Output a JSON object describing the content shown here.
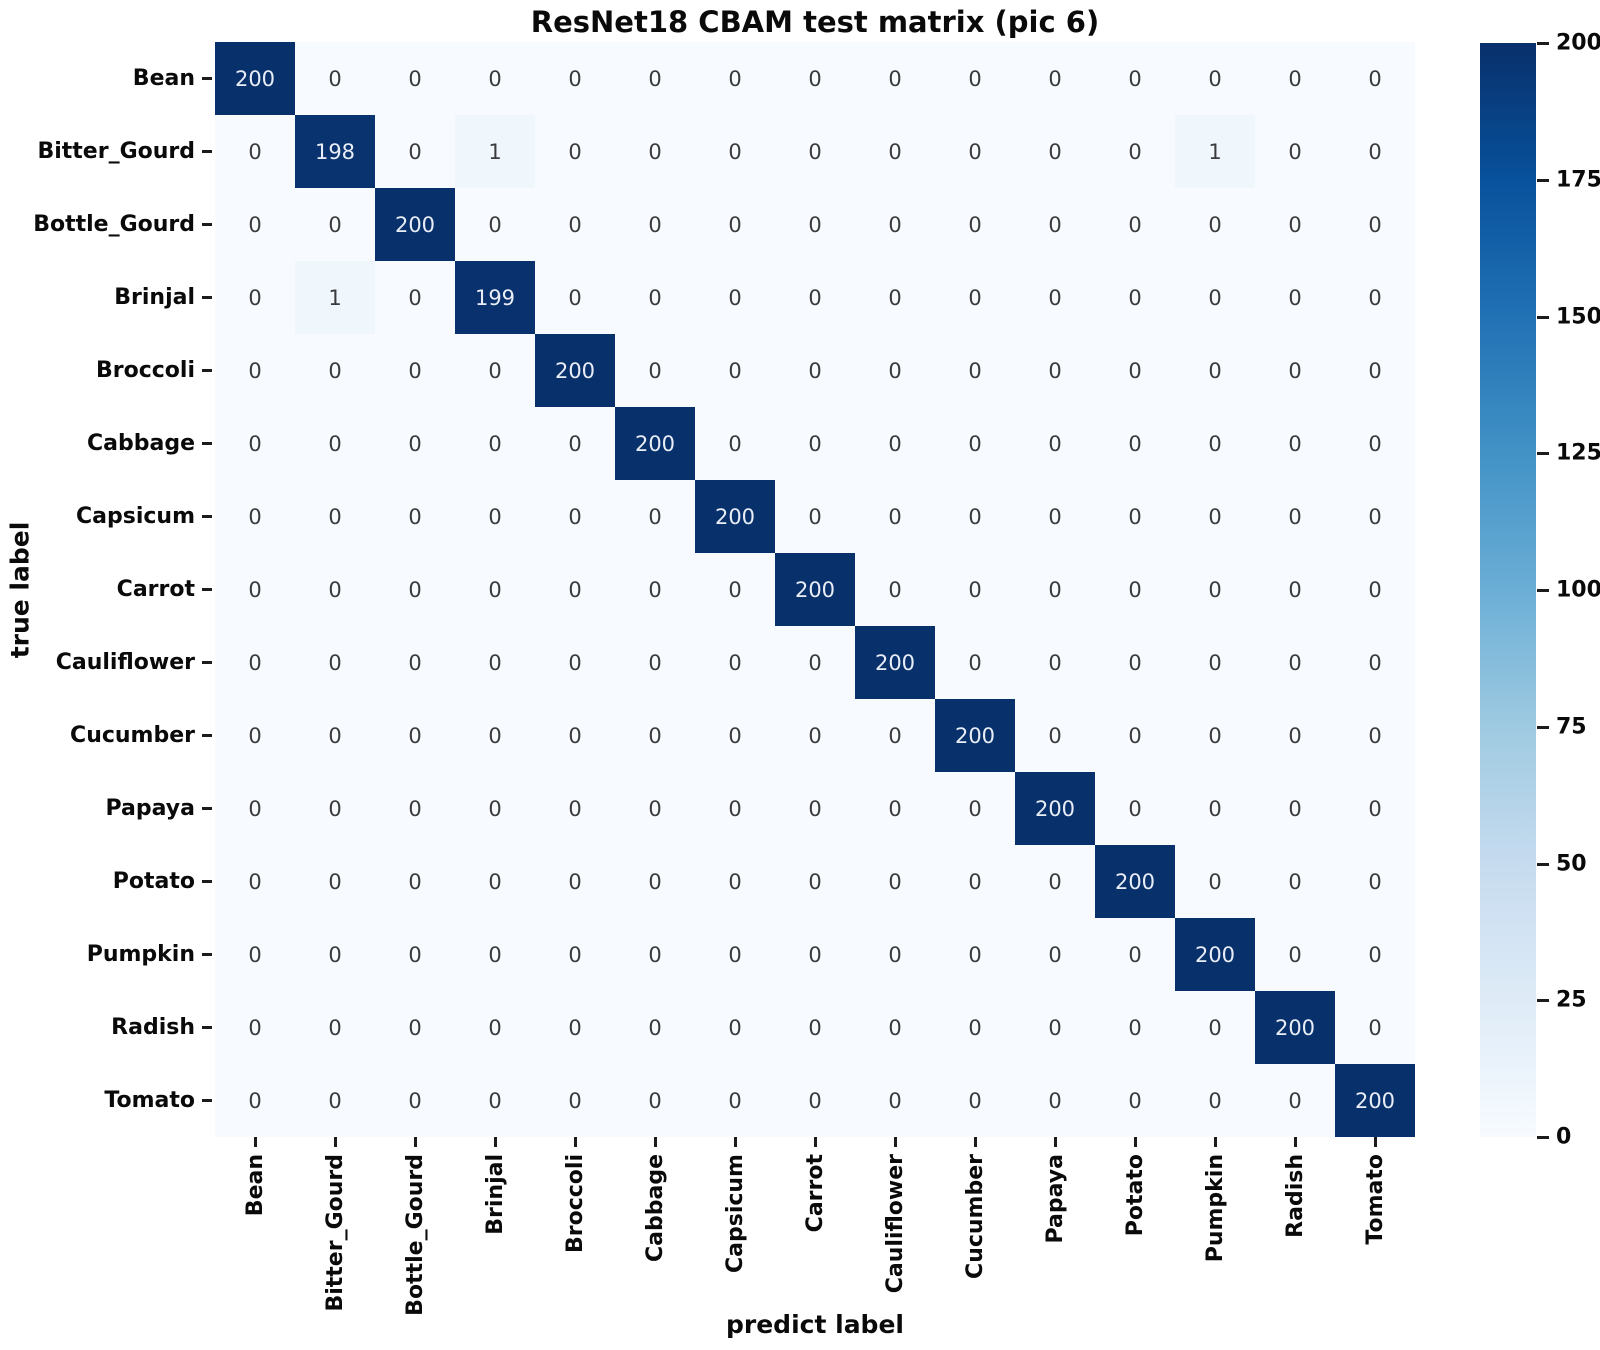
{
  "chart_data": {
    "type": "heatmap",
    "title": "ResNet18 CBAM test matrix (pic 6)",
    "xlabel": "predict label",
    "ylabel": "true label",
    "categories": [
      "Bean",
      "Bitter_Gourd",
      "Bottle_Gourd",
      "Brinjal",
      "Broccoli",
      "Cabbage",
      "Capsicum",
      "Carrot",
      "Cauliflower",
      "Cucumber",
      "Papaya",
      "Potato",
      "Pumpkin",
      "Radish",
      "Tomato"
    ],
    "matrix": [
      [
        200,
        0,
        0,
        0,
        0,
        0,
        0,
        0,
        0,
        0,
        0,
        0,
        0,
        0,
        0
      ],
      [
        0,
        198,
        0,
        1,
        0,
        0,
        0,
        0,
        0,
        0,
        0,
        0,
        1,
        0,
        0
      ],
      [
        0,
        0,
        200,
        0,
        0,
        0,
        0,
        0,
        0,
        0,
        0,
        0,
        0,
        0,
        0
      ],
      [
        0,
        1,
        0,
        199,
        0,
        0,
        0,
        0,
        0,
        0,
        0,
        0,
        0,
        0,
        0
      ],
      [
        0,
        0,
        0,
        0,
        200,
        0,
        0,
        0,
        0,
        0,
        0,
        0,
        0,
        0,
        0
      ],
      [
        0,
        0,
        0,
        0,
        0,
        200,
        0,
        0,
        0,
        0,
        0,
        0,
        0,
        0,
        0
      ],
      [
        0,
        0,
        0,
        0,
        0,
        0,
        200,
        0,
        0,
        0,
        0,
        0,
        0,
        0,
        0
      ],
      [
        0,
        0,
        0,
        0,
        0,
        0,
        0,
        200,
        0,
        0,
        0,
        0,
        0,
        0,
        0
      ],
      [
        0,
        0,
        0,
        0,
        0,
        0,
        0,
        0,
        200,
        0,
        0,
        0,
        0,
        0,
        0
      ],
      [
        0,
        0,
        0,
        0,
        0,
        0,
        0,
        0,
        0,
        200,
        0,
        0,
        0,
        0,
        0
      ],
      [
        0,
        0,
        0,
        0,
        0,
        0,
        0,
        0,
        0,
        0,
        200,
        0,
        0,
        0,
        0
      ],
      [
        0,
        0,
        0,
        0,
        0,
        0,
        0,
        0,
        0,
        0,
        0,
        200,
        0,
        0,
        0
      ],
      [
        0,
        0,
        0,
        0,
        0,
        0,
        0,
        0,
        0,
        0,
        0,
        0,
        200,
        0,
        0
      ],
      [
        0,
        0,
        0,
        0,
        0,
        0,
        0,
        0,
        0,
        0,
        0,
        0,
        0,
        200,
        0
      ],
      [
        0,
        0,
        0,
        0,
        0,
        0,
        0,
        0,
        0,
        0,
        0,
        0,
        0,
        0,
        200
      ]
    ],
    "vmin": 0,
    "vmax": 200,
    "colorbar_ticks": [
      0,
      25,
      50,
      75,
      100,
      125,
      150,
      175,
      200
    ],
    "colormap": {
      "name": "Blues",
      "stops": [
        "#f7fbff",
        "#deebf7",
        "#c6dbef",
        "#9ecae1",
        "#6baed6",
        "#4292c6",
        "#2171b5",
        "#08519c",
        "#08306b"
      ]
    },
    "annotation_colors": {
      "on_dark": "#e9eef6",
      "on_light": "#3b3b3b"
    },
    "legend_position": "right",
    "grid": false
  }
}
